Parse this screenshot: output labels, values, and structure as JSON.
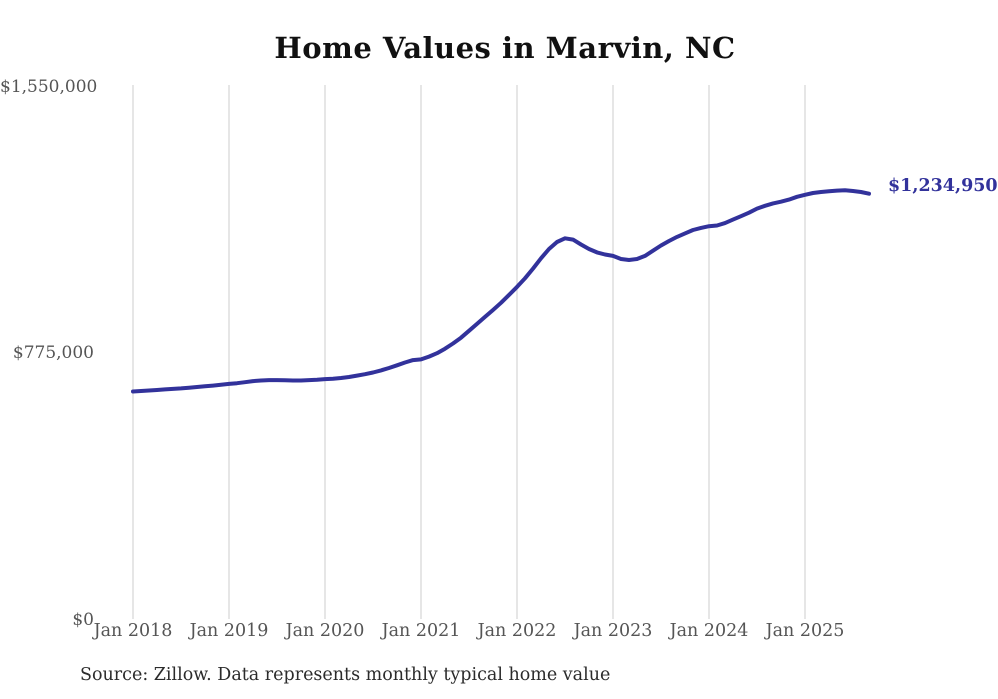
{
  "chart_data": {
    "type": "line",
    "title": "Home Values in Marvin, NC",
    "source_note": "Source: Zillow. Data represents monthly typical home value",
    "end_label": "$1,234,950",
    "end_value": 1234950,
    "line_color": "#32329b",
    "grid_color": "#cccccc",
    "grid": "vertical-only",
    "legend_position": "none",
    "xlabel": "",
    "ylabel": "",
    "ylim": [
      0,
      1550000
    ],
    "y_tick_labels": [
      "$1,550,000",
      "$775,000",
      "$0"
    ],
    "y_tick_values": [
      1550000,
      775000,
      0
    ],
    "x_tick_labels": [
      "Jan 2018",
      "Jan 2019",
      "Jan 2020",
      "Jan 2021",
      "Jan 2022",
      "Jan 2023",
      "Jan 2024",
      "Jan 2025"
    ],
    "series": [
      {
        "name": "Monthly typical home value",
        "start_month": "2018-01",
        "end_month": "2025-09",
        "cadence": "monthly",
        "values": [
          662000,
          663500,
          665000,
          666500,
          668000,
          669500,
          671000,
          673000,
          675000,
          677000,
          679000,
          681500,
          684000,
          686000,
          689000,
          692000,
          694000,
          695000,
          695000,
          694500,
          694000,
          694000,
          695000,
          696000,
          698000,
          699000,
          701000,
          704000,
          708000,
          712000,
          717000,
          723000,
          730000,
          738000,
          746000,
          753000,
          755000,
          763000,
          773000,
          786000,
          801000,
          818000,
          838000,
          858000,
          878000,
          898000,
          919000,
          942000,
          965000,
          990000,
          1018000,
          1048000,
          1075000,
          1095000,
          1106000,
          1102000,
          1088000,
          1075000,
          1065000,
          1059000,
          1055000,
          1046000,
          1043000,
          1046000,
          1055000,
          1070000,
          1085000,
          1098000,
          1110000,
          1120000,
          1130000,
          1136000,
          1141000,
          1143000,
          1150000,
          1160000,
          1170000,
          1180000,
          1192000,
          1200000,
          1207000,
          1212000,
          1218000,
          1226000,
          1232000,
          1237000,
          1240000,
          1242000,
          1244000,
          1245000,
          1243000,
          1240000,
          1234950
        ]
      }
    ]
  }
}
